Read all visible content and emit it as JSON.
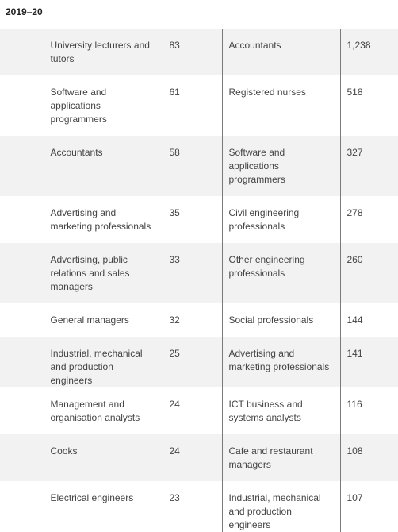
{
  "heading": "2019–20",
  "rows": [
    {
      "occupation_a": "University lecturers and tutors",
      "count_a": "83",
      "occupation_b": "Accountants",
      "count_b": "1,238"
    },
    {
      "occupation_a": "Software and applications programmers",
      "count_a": "61",
      "occupation_b": "Registered nurses",
      "count_b": "518"
    },
    {
      "occupation_a": "Accountants",
      "count_a": "58",
      "occupation_b": "Software and applications programmers",
      "count_b": "327"
    },
    {
      "occupation_a": "Advertising and marketing professionals",
      "count_a": "35",
      "occupation_b": "Civil engineering professionals",
      "count_b": "278"
    },
    {
      "occupation_a": "Advertising, public relations and sales managers",
      "count_a": "33",
      "occupation_b": "Other engineering professionals",
      "count_b": "260"
    },
    {
      "occupation_a": "General managers",
      "count_a": "32",
      "occupation_b": "Social professionals",
      "count_b": "144"
    },
    {
      "occupation_a": "Industrial, mechanical and production engineers",
      "count_a": "25",
      "occupation_b": "Advertising and marketing professionals",
      "count_b": "141"
    },
    {
      "occupation_a": "Management and organisation analysts",
      "count_a": "24",
      "occupation_b": "ICT business and systems analysts",
      "count_b": "116"
    },
    {
      "occupation_a": "Cooks",
      "count_a": "24",
      "occupation_b": "Cafe and restaurant managers",
      "count_b": "108"
    },
    {
      "occupation_a": "Electrical engineers",
      "count_a": "23",
      "occupation_b": "Industrial, mechanical and production engineers",
      "count_b": "107"
    }
  ]
}
